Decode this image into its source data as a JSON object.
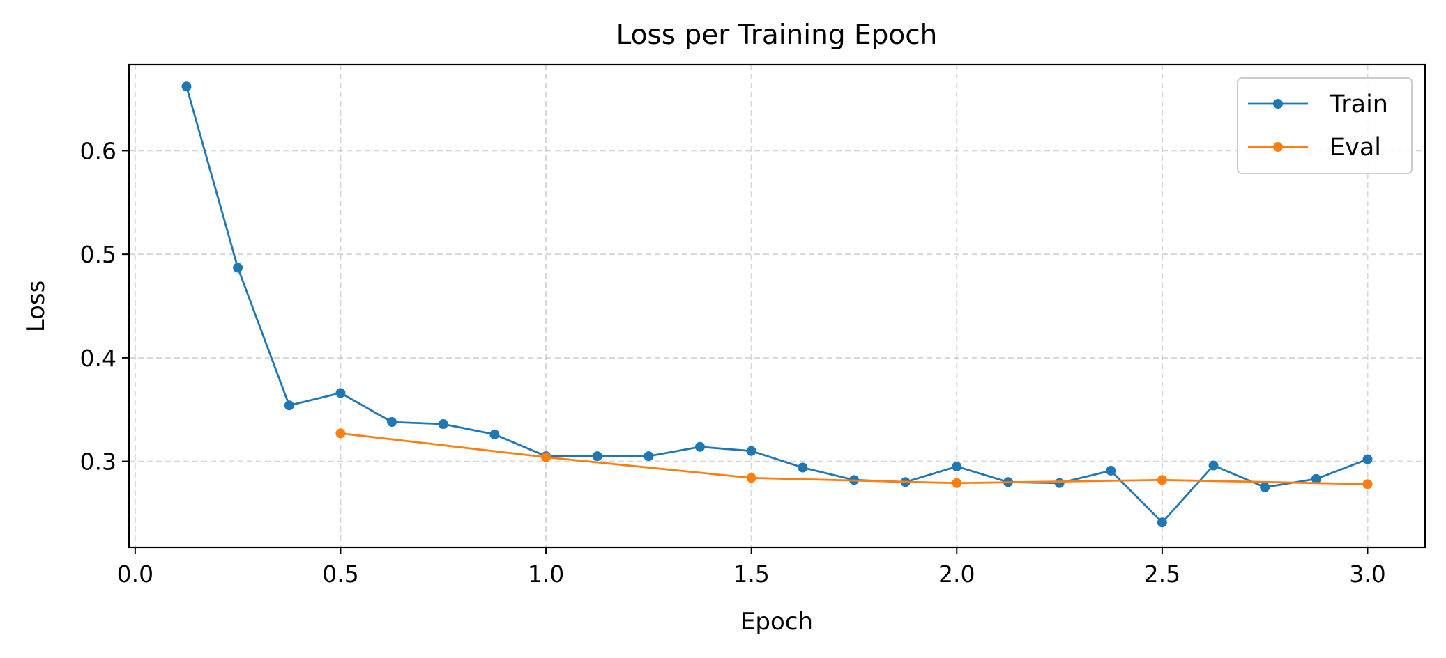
{
  "chart_data": {
    "type": "line",
    "title": "Loss per Training Epoch",
    "xlabel": "Epoch",
    "ylabel": "Loss",
    "xlim": [
      -0.015,
      3.14
    ],
    "ylim": [
      0.217,
      0.683
    ],
    "xticks": [
      0.0,
      0.5,
      1.0,
      1.5,
      2.0,
      2.5,
      3.0
    ],
    "xtick_labels": [
      "0.0",
      "0.5",
      "1.0",
      "1.5",
      "2.0",
      "2.5",
      "3.0"
    ],
    "yticks": [
      0.3,
      0.4,
      0.5,
      0.6
    ],
    "ytick_labels": [
      "0.3",
      "0.4",
      "0.5",
      "0.6"
    ],
    "grid": true,
    "legend_position": "top-right",
    "series": [
      {
        "name": "Train",
        "color": "#1f77b4",
        "marker": "circle",
        "x": [
          0.125,
          0.25,
          0.375,
          0.5,
          0.625,
          0.75,
          0.875,
          1.0,
          1.125,
          1.25,
          1.375,
          1.5,
          1.625,
          1.75,
          1.875,
          2.0,
          2.125,
          2.25,
          2.375,
          2.5,
          2.625,
          2.75,
          2.875,
          3.0
        ],
        "y": [
          0.662,
          0.487,
          0.354,
          0.366,
          0.338,
          0.336,
          0.326,
          0.305,
          0.305,
          0.305,
          0.314,
          0.31,
          0.294,
          0.282,
          0.28,
          0.295,
          0.28,
          0.279,
          0.291,
          0.241,
          0.296,
          0.275,
          0.283,
          0.302
        ]
      },
      {
        "name": "Eval",
        "color": "#ff7f0e",
        "marker": "circle",
        "x": [
          0.5,
          1.0,
          1.5,
          2.0,
          2.5,
          3.0
        ],
        "y": [
          0.327,
          0.304,
          0.284,
          0.279,
          0.282,
          0.278
        ]
      }
    ]
  }
}
